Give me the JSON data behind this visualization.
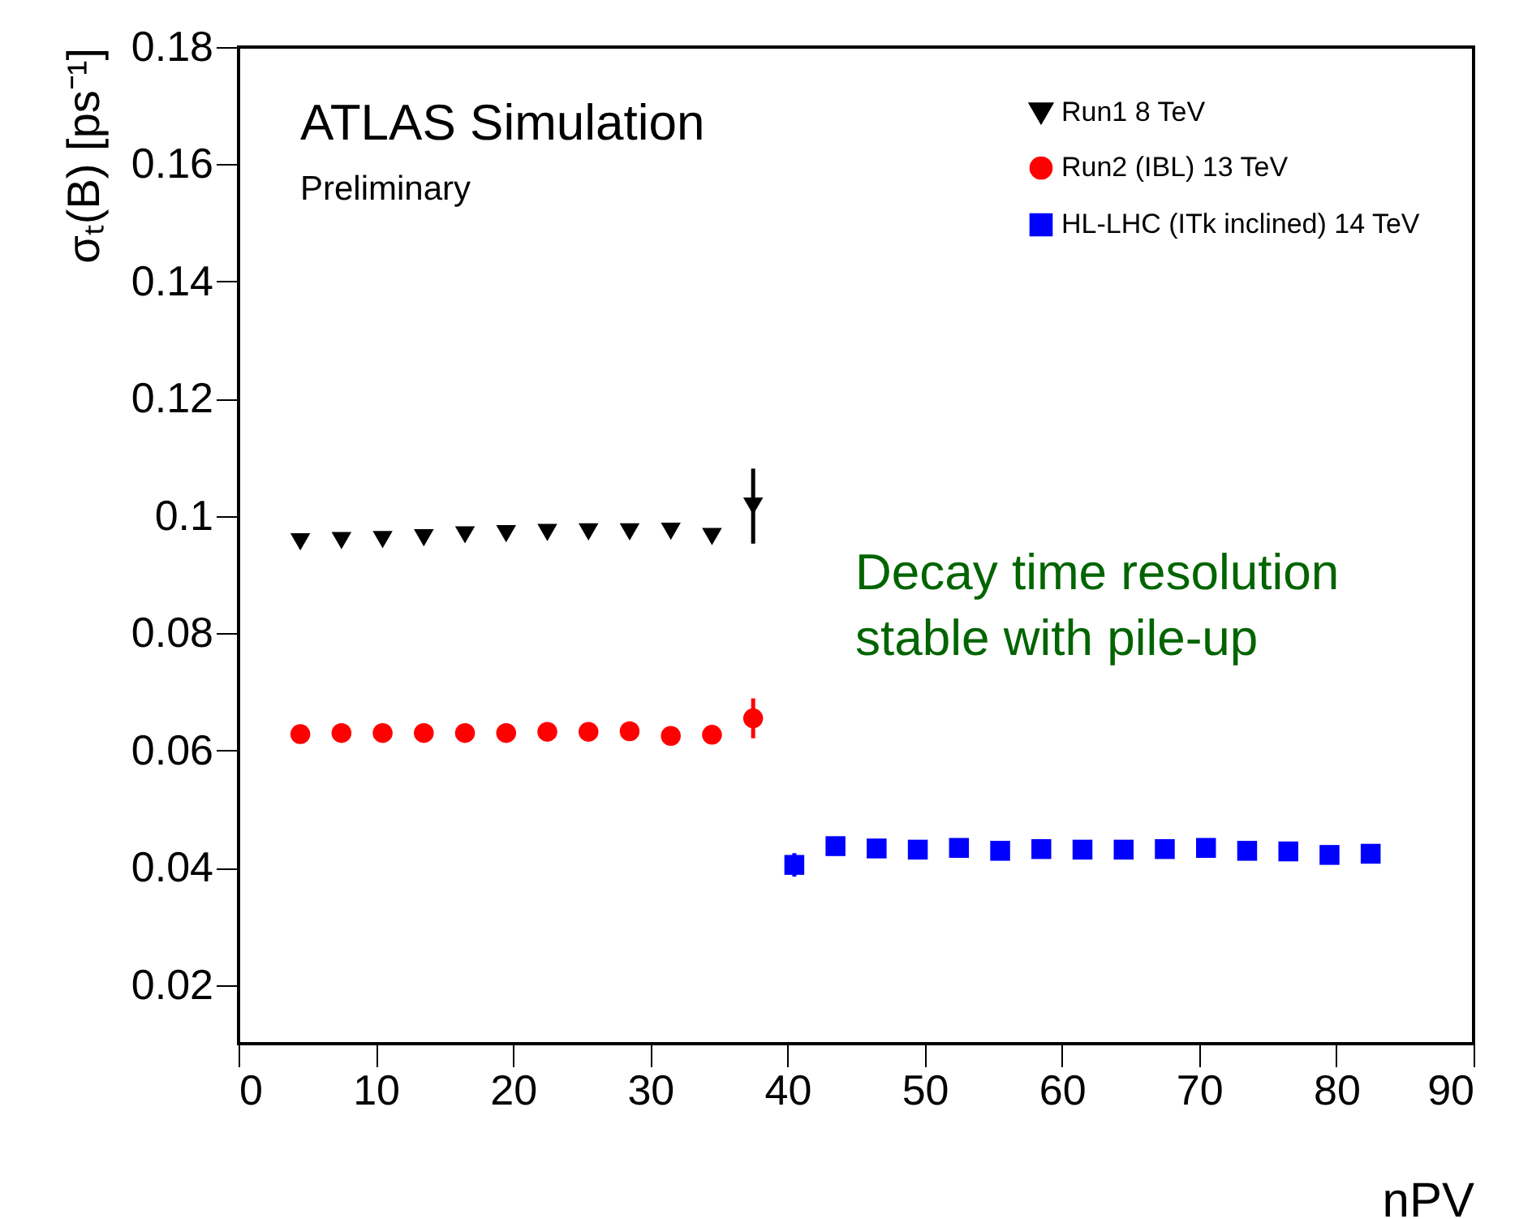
{
  "chart_data": {
    "type": "scatter",
    "xlabel": "nPV",
    "ylabel": "σₜ(B) [ps⁻¹]",
    "xlim": [
      0,
      90
    ],
    "xticks": [
      0,
      10,
      20,
      30,
      40,
      50,
      60,
      70,
      80,
      90
    ],
    "ylim": [
      0.01,
      0.18
    ],
    "yticks": [
      0.02,
      0.04,
      0.06,
      0.08,
      0.1,
      0.12,
      0.14,
      0.16,
      0.18
    ],
    "legend": "top right",
    "grid": false,
    "annotations": [
      "ATLAS Simulation",
      "Preliminary",
      "Decay time resolution\nstable with pile-up"
    ],
    "series": [
      {
        "name": "Run1 8 TeV",
        "color": "#000000",
        "marker": "triangle",
        "x": [
          4.5,
          7.5,
          10.5,
          13.5,
          16.5,
          19.5,
          22.5,
          25.5,
          28.5,
          31.5,
          34.5,
          37.5
        ],
        "values": [
          0.0956,
          0.0958,
          0.096,
          0.0963,
          0.0968,
          0.097,
          0.0972,
          0.0973,
          0.0973,
          0.0974,
          0.0965,
          0.1017
        ],
        "errors": [
          null,
          null,
          null,
          null,
          null,
          null,
          null,
          null,
          null,
          null,
          null,
          0.0064
        ]
      },
      {
        "name": "Run2 (IBL) 13 TeV",
        "color": "#ff0000",
        "marker": "circle",
        "x": [
          4.5,
          7.5,
          10.5,
          13.5,
          16.5,
          19.5,
          22.5,
          25.5,
          28.5,
          31.5,
          34.5,
          37.5
        ],
        "values": [
          0.0628,
          0.063,
          0.063,
          0.063,
          0.063,
          0.063,
          0.0632,
          0.0632,
          0.0633,
          0.0625,
          0.0627,
          0.0655
        ],
        "errors": [
          null,
          null,
          null,
          null,
          null,
          null,
          null,
          null,
          null,
          null,
          null,
          0.0034
        ]
      },
      {
        "name": "HL-LHC (ITk inclined) 14 TeV",
        "color": "#0000ff",
        "marker": "square",
        "x": [
          40.5,
          43.5,
          46.5,
          49.5,
          52.5,
          55.5,
          58.5,
          61.5,
          64.5,
          67.5,
          70.5,
          73.5,
          76.5,
          79.5,
          82.5
        ],
        "values": [
          0.0405,
          0.0437,
          0.0433,
          0.0431,
          0.0434,
          0.0429,
          0.0432,
          0.0431,
          0.0431,
          0.0432,
          0.0434,
          0.0429,
          0.0428,
          0.0422,
          0.0424
        ],
        "errors": [
          0.002,
          null,
          null,
          null,
          null,
          null,
          null,
          null,
          null,
          null,
          null,
          null,
          null,
          null,
          null
        ]
      }
    ]
  }
}
